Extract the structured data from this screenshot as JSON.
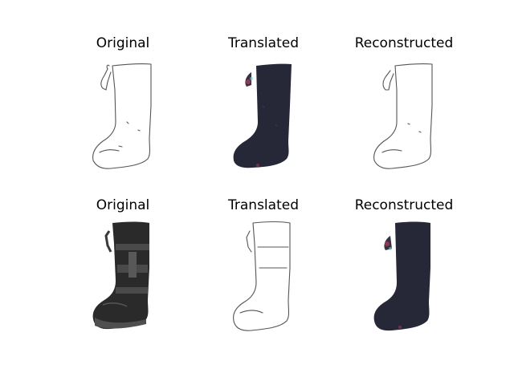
{
  "figure": {
    "rows": [
      {
        "panels": [
          {
            "title": "Original",
            "content": "boot-sketch"
          },
          {
            "title": "Translated",
            "content": "boot-dark-generated"
          },
          {
            "title": "Reconstructed",
            "content": "boot-sketch"
          }
        ]
      },
      {
        "panels": [
          {
            "title": "Original",
            "content": "boot-photo-black"
          },
          {
            "title": "Translated",
            "content": "boot-sketch"
          },
          {
            "title": "Reconstructed",
            "content": "boot-dark-generated"
          }
        ]
      }
    ]
  },
  "colors": {
    "sketch_line": "#555555",
    "generated_boot": "#262838",
    "photo_boot": "#2a2a2a",
    "photo_strap": "#4a4a4a",
    "accent_fringe": "#b0405a"
  }
}
